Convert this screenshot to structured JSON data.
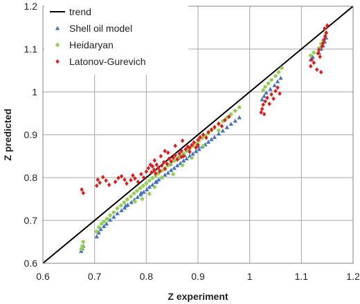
{
  "chart_data": {
    "type": "scatter",
    "xlabel": "Z experiment",
    "ylabel": "Z predicted",
    "xlim": [
      0.6,
      1.2
    ],
    "ylim": [
      0.6,
      1.2
    ],
    "xticks": [
      "0.6",
      "0.7",
      "0.8",
      "0.9",
      "1",
      "1.1",
      "1.2"
    ],
    "yticks": [
      "0.6",
      "0.7",
      "0.8",
      "0.9",
      "1",
      "1.1",
      "1.2"
    ],
    "grid": true,
    "legend_position": "top-left",
    "trend": {
      "name": "trend",
      "color": "#000000",
      "points": [
        [
          0.6,
          0.6
        ],
        [
          1.2,
          1.2
        ]
      ]
    },
    "series": [
      {
        "name": "Shell oil model",
        "marker": "triangle",
        "color": "#4472C4",
        "points": [
          [
            0.674,
            0.628
          ],
          [
            0.676,
            0.634
          ],
          [
            0.678,
            0.64
          ],
          [
            0.704,
            0.662
          ],
          [
            0.708,
            0.671
          ],
          [
            0.712,
            0.679
          ],
          [
            0.718,
            0.686
          ],
          [
            0.723,
            0.692
          ],
          [
            0.73,
            0.701
          ],
          [
            0.737,
            0.708
          ],
          [
            0.744,
            0.716
          ],
          [
            0.752,
            0.723
          ],
          [
            0.758,
            0.729
          ],
          [
            0.764,
            0.736
          ],
          [
            0.771,
            0.742
          ],
          [
            0.777,
            0.748
          ],
          [
            0.783,
            0.754
          ],
          [
            0.789,
            0.76
          ],
          [
            0.795,
            0.766
          ],
          [
            0.801,
            0.772
          ],
          [
            0.806,
            0.778
          ],
          [
            0.812,
            0.783
          ],
          [
            0.818,
            0.789
          ],
          [
            0.824,
            0.795
          ],
          [
            0.83,
            0.8
          ],
          [
            0.836,
            0.806
          ],
          [
            0.842,
            0.811
          ],
          [
            0.848,
            0.817
          ],
          [
            0.854,
            0.822
          ],
          [
            0.86,
            0.828
          ],
          [
            0.866,
            0.833
          ],
          [
            0.872,
            0.839
          ],
          [
            0.878,
            0.844
          ],
          [
            0.884,
            0.85
          ],
          [
            0.89,
            0.855
          ],
          [
            0.896,
            0.861
          ],
          [
            0.902,
            0.866
          ],
          [
            0.908,
            0.872
          ],
          [
            0.914,
            0.877
          ],
          [
            0.92,
            0.883
          ],
          [
            0.926,
            0.889
          ],
          [
            0.932,
            0.894
          ],
          [
            0.94,
            0.902
          ],
          [
            0.948,
            0.909
          ],
          [
            0.956,
            0.917
          ],
          [
            0.964,
            0.925
          ],
          [
            0.972,
            0.932
          ],
          [
            0.98,
            0.94
          ],
          [
            1.024,
            0.982
          ],
          [
            1.028,
            0.99
          ],
          [
            1.032,
            0.998
          ],
          [
            1.04,
            1.006
          ],
          [
            1.048,
            1.015
          ],
          [
            1.054,
            1.024
          ],
          [
            1.06,
            1.032
          ],
          [
            1.118,
            1.075
          ],
          [
            1.122,
            1.081
          ],
          [
            1.134,
            1.091
          ],
          [
            1.138,
            1.1
          ],
          [
            1.142,
            1.108
          ],
          [
            1.145,
            1.117
          ],
          [
            1.148,
            1.126
          ],
          [
            0.846,
            0.831
          ],
          [
            0.862,
            0.846
          ],
          [
            0.882,
            0.865
          ],
          [
            0.82,
            0.79
          ],
          [
            0.79,
            0.764
          ],
          [
            0.76,
            0.734
          ],
          [
            0.9,
            0.874
          ],
          [
            0.874,
            0.852
          ]
        ]
      },
      {
        "name": "Heidaryan",
        "marker": "circle",
        "color": "#92D050",
        "points": [
          [
            0.674,
            0.633
          ],
          [
            0.676,
            0.64
          ],
          [
            0.678,
            0.65
          ],
          [
            0.704,
            0.674
          ],
          [
            0.708,
            0.684
          ],
          [
            0.713,
            0.692
          ],
          [
            0.718,
            0.697
          ],
          [
            0.724,
            0.704
          ],
          [
            0.73,
            0.712
          ],
          [
            0.737,
            0.719
          ],
          [
            0.744,
            0.728
          ],
          [
            0.751,
            0.735
          ],
          [
            0.757,
            0.742
          ],
          [
            0.763,
            0.749
          ],
          [
            0.77,
            0.756
          ],
          [
            0.776,
            0.763
          ],
          [
            0.782,
            0.769
          ],
          [
            0.788,
            0.775
          ],
          [
            0.794,
            0.781
          ],
          [
            0.8,
            0.787
          ],
          [
            0.806,
            0.793
          ],
          [
            0.812,
            0.799
          ],
          [
            0.818,
            0.805
          ],
          [
            0.824,
            0.81
          ],
          [
            0.83,
            0.816
          ],
          [
            0.836,
            0.822
          ],
          [
            0.842,
            0.828
          ],
          [
            0.848,
            0.833
          ],
          [
            0.854,
            0.839
          ],
          [
            0.86,
            0.845
          ],
          [
            0.866,
            0.85
          ],
          [
            0.872,
            0.856
          ],
          [
            0.878,
            0.862
          ],
          [
            0.884,
            0.868
          ],
          [
            0.89,
            0.874
          ],
          [
            0.896,
            0.88
          ],
          [
            0.902,
            0.886
          ],
          [
            0.908,
            0.892
          ],
          [
            0.914,
            0.898
          ],
          [
            0.92,
            0.904
          ],
          [
            0.926,
            0.91
          ],
          [
            0.932,
            0.916
          ],
          [
            0.94,
            0.924
          ],
          [
            0.948,
            0.932
          ],
          [
            0.956,
            0.94
          ],
          [
            0.964,
            0.948
          ],
          [
            0.972,
            0.956
          ],
          [
            0.98,
            0.964
          ],
          [
            1.026,
            1.004
          ],
          [
            1.03,
            1.012
          ],
          [
            1.036,
            1.02
          ],
          [
            1.042,
            1.028
          ],
          [
            1.05,
            1.037
          ],
          [
            1.056,
            1.046
          ],
          [
            1.062,
            1.056
          ],
          [
            1.118,
            1.085
          ],
          [
            1.124,
            1.092
          ],
          [
            1.134,
            1.102
          ],
          [
            1.138,
            1.112
          ],
          [
            1.142,
            1.12
          ],
          [
            1.146,
            1.13
          ],
          [
            1.148,
            1.138
          ],
          [
            0.806,
            0.762
          ],
          [
            0.792,
            0.75
          ],
          [
            0.778,
            0.744
          ],
          [
            0.852,
            0.808
          ],
          [
            0.87,
            0.829
          ],
          [
            0.888,
            0.846
          ],
          [
            0.91,
            0.874
          ],
          [
            0.94,
            0.91
          ],
          [
            0.83,
            0.8
          ],
          [
            0.816,
            0.778
          ]
        ]
      },
      {
        "name": "Latonov-Gurevich",
        "marker": "diamond",
        "color": "#E31A1C",
        "points": [
          [
            0.675,
            0.772
          ],
          [
            0.678,
            0.764
          ],
          [
            0.704,
            0.781
          ],
          [
            0.706,
            0.795
          ],
          [
            0.71,
            0.788
          ],
          [
            0.716,
            0.801
          ],
          [
            0.722,
            0.793
          ],
          [
            0.728,
            0.783
          ],
          [
            0.74,
            0.79
          ],
          [
            0.746,
            0.799
          ],
          [
            0.752,
            0.803
          ],
          [
            0.758,
            0.795
          ],
          [
            0.762,
            0.786
          ],
          [
            0.77,
            0.794
          ],
          [
            0.774,
            0.805
          ],
          [
            0.778,
            0.798
          ],
          [
            0.784,
            0.79
          ],
          [
            0.79,
            0.808
          ],
          [
            0.795,
            0.8
          ],
          [
            0.8,
            0.814
          ],
          [
            0.804,
            0.822
          ],
          [
            0.81,
            0.812
          ],
          [
            0.812,
            0.826
          ],
          [
            0.815,
            0.818
          ],
          [
            0.818,
            0.81
          ],
          [
            0.82,
            0.83
          ],
          [
            0.823,
            0.822
          ],
          [
            0.826,
            0.815
          ],
          [
            0.83,
            0.828
          ],
          [
            0.834,
            0.836
          ],
          [
            0.836,
            0.82
          ],
          [
            0.84,
            0.832
          ],
          [
            0.844,
            0.844
          ],
          [
            0.848,
            0.838
          ],
          [
            0.852,
            0.846
          ],
          [
            0.856,
            0.852
          ],
          [
            0.86,
            0.842
          ],
          [
            0.864,
            0.856
          ],
          [
            0.868,
            0.862
          ],
          [
            0.872,
            0.85
          ],
          [
            0.876,
            0.866
          ],
          [
            0.88,
            0.872
          ],
          [
            0.884,
            0.86
          ],
          [
            0.888,
            0.876
          ],
          [
            0.892,
            0.882
          ],
          [
            0.896,
            0.87
          ],
          [
            0.9,
            0.888
          ],
          [
            0.904,
            0.894
          ],
          [
            0.91,
            0.9
          ],
          [
            0.916,
            0.893
          ],
          [
            0.92,
            0.906
          ],
          [
            0.926,
            0.912
          ],
          [
            0.932,
            0.918
          ],
          [
            0.94,
            0.926
          ],
          [
            0.946,
            0.92
          ],
          [
            0.952,
            0.934
          ],
          [
            0.96,
            0.942
          ],
          [
            1.022,
            0.952
          ],
          [
            1.024,
            0.96
          ],
          [
            1.026,
            0.97
          ],
          [
            1.028,
            0.948
          ],
          [
            1.03,
            0.978
          ],
          [
            1.034,
            0.986
          ],
          [
            1.038,
            0.972
          ],
          [
            1.042,
            0.994
          ],
          [
            1.046,
            0.984
          ],
          [
            1.05,
            1.002
          ],
          [
            1.054,
            1.01
          ],
          [
            1.058,
            0.996
          ],
          [
            1.118,
            1.06
          ],
          [
            1.12,
            1.075
          ],
          [
            1.124,
            1.068
          ],
          [
            1.13,
            1.052
          ],
          [
            1.132,
            1.09
          ],
          [
            1.134,
            1.098
          ],
          [
            1.136,
            1.082
          ],
          [
            1.138,
            1.046
          ],
          [
            1.14,
            1.106
          ],
          [
            1.142,
            1.114
          ],
          [
            1.144,
            1.122
          ],
          [
            1.146,
            1.13
          ],
          [
            1.148,
            1.138
          ],
          [
            1.145,
            1.148
          ],
          [
            1.15,
            1.155
          ],
          [
            0.856,
            0.874
          ],
          [
            0.842,
            0.858
          ],
          [
            0.828,
            0.85
          ],
          [
            0.816,
            0.84
          ],
          [
            0.87,
            0.886
          ],
          [
            0.836,
            0.862
          ],
          [
            0.9,
            0.876
          ],
          [
            0.884,
            0.87
          ],
          [
            0.868,
            0.848
          ],
          [
            0.808,
            0.83
          ]
        ]
      }
    ]
  }
}
